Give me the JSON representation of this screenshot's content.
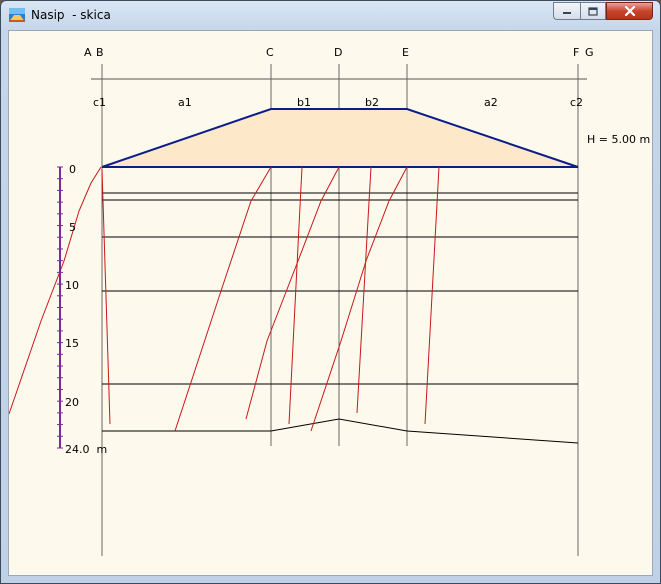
{
  "window": {
    "title": "Nasip  - skica",
    "icon": "app-icon",
    "controls": [
      "minimize-icon",
      "maximize-icon",
      "close-icon"
    ]
  },
  "sketch": {
    "column_letters": [
      "A",
      "B",
      "C",
      "D",
      "E",
      "F",
      "G"
    ],
    "segment_labels": [
      "c1",
      "a1",
      "b1",
      "b2",
      "a2",
      "c2"
    ],
    "height_label": "H = 5.00 m",
    "depth_ticks": [
      "0",
      "5",
      "10",
      "15",
      "20"
    ],
    "depth_end_label": "24.0  m",
    "colors": {
      "embankment_fill": "#fde9c9",
      "embankment_outline": "#0a1e8a",
      "failure_lines": "#c81818",
      "scale": "#7a2a9a",
      "grid": "#000000",
      "background": "#fdf9ec"
    }
  }
}
